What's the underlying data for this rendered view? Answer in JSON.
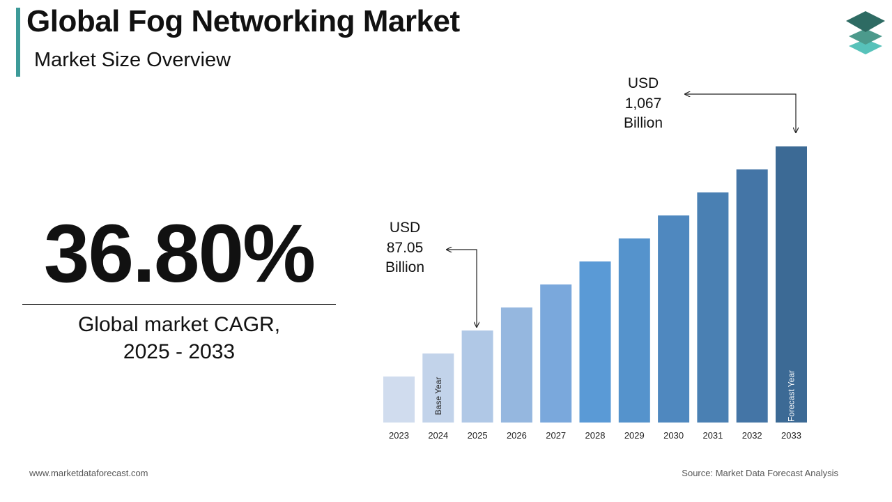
{
  "header": {
    "title": "Global Fog Networking Market",
    "subtitle": "Market Size Overview"
  },
  "cagr": {
    "value": "36.80%",
    "label_line1": "Global market CAGR,",
    "label_line2": "2025 - 2033"
  },
  "callouts": {
    "start": {
      "line1": "USD",
      "line2": "87.05",
      "line3": "Billion"
    },
    "end": {
      "line1": "USD",
      "line2": "1,067",
      "line3": "Billion"
    }
  },
  "chart_data": {
    "type": "bar",
    "categories": [
      "2023",
      "2024",
      "2025",
      "2026",
      "2027",
      "2028",
      "2029",
      "2030",
      "2031",
      "2032",
      "2033"
    ],
    "values": [
      2,
      3,
      4,
      5,
      6,
      7,
      8,
      9,
      10,
      11,
      12
    ],
    "bar_labels": {
      "2024": "Base Year",
      "2033": "Forecast Year"
    },
    "colors": [
      "#d0dcee",
      "#c2d3ea",
      "#b0c8e6",
      "#95b7df",
      "#7aa8dc",
      "#5a9ad6",
      "#5593cc",
      "#4f88bf",
      "#4a80b3",
      "#4475a6",
      "#3c6a95"
    ],
    "title": "",
    "xlabel": "",
    "ylabel": "",
    "ylim": [
      0,
      12
    ]
  },
  "footer": {
    "website": "www.marketdataforecast.com",
    "source": "Source: Market Data Forecast Analysis"
  },
  "logo": {
    "icon": "stacked-layers-icon",
    "colors": [
      "#2e6b63",
      "#4c9a8c",
      "#57c2ba"
    ]
  }
}
